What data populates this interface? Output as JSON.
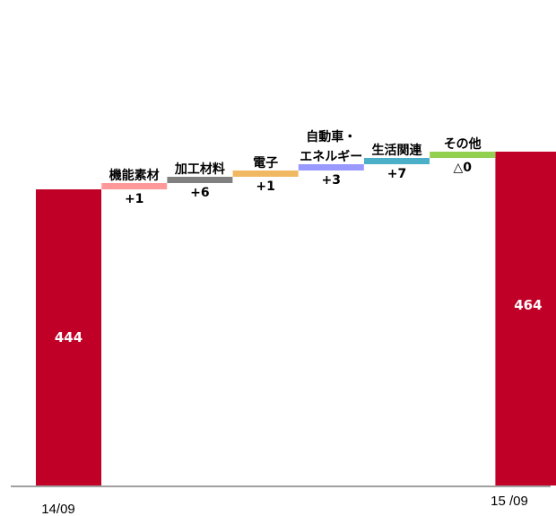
{
  "chart_data": {
    "type": "bar",
    "subtype": "waterfall",
    "start": {
      "label": "14/09",
      "value": 444,
      "value_label": "444",
      "color": "#c00026"
    },
    "end": {
      "label": "15 /09",
      "value": 464,
      "value_label": "464",
      "color": "#c00026"
    },
    "steps": [
      {
        "name": "機能素材",
        "delta": 1,
        "delta_label": "+1",
        "color": "#ff9999"
      },
      {
        "name": "加工材料",
        "delta": 6,
        "delta_label": "+6",
        "color": "#808080"
      },
      {
        "name": "電子",
        "delta": 1,
        "delta_label": "+1",
        "color": "#f0b860"
      },
      {
        "name_lines": [
          "自動車・",
          "エネルギー"
        ],
        "delta": 3,
        "delta_label": "+3",
        "color": "#9999ff"
      },
      {
        "name": "生活関連",
        "delta": 7,
        "delta_label": "+7",
        "color": "#4bafc8"
      },
      {
        "name": "その他",
        "delta": 0,
        "delta_label": "△0",
        "color": "#92d050"
      }
    ],
    "title": "",
    "xlabel": "",
    "ylabel": "",
    "grid": false,
    "legend": "none"
  }
}
